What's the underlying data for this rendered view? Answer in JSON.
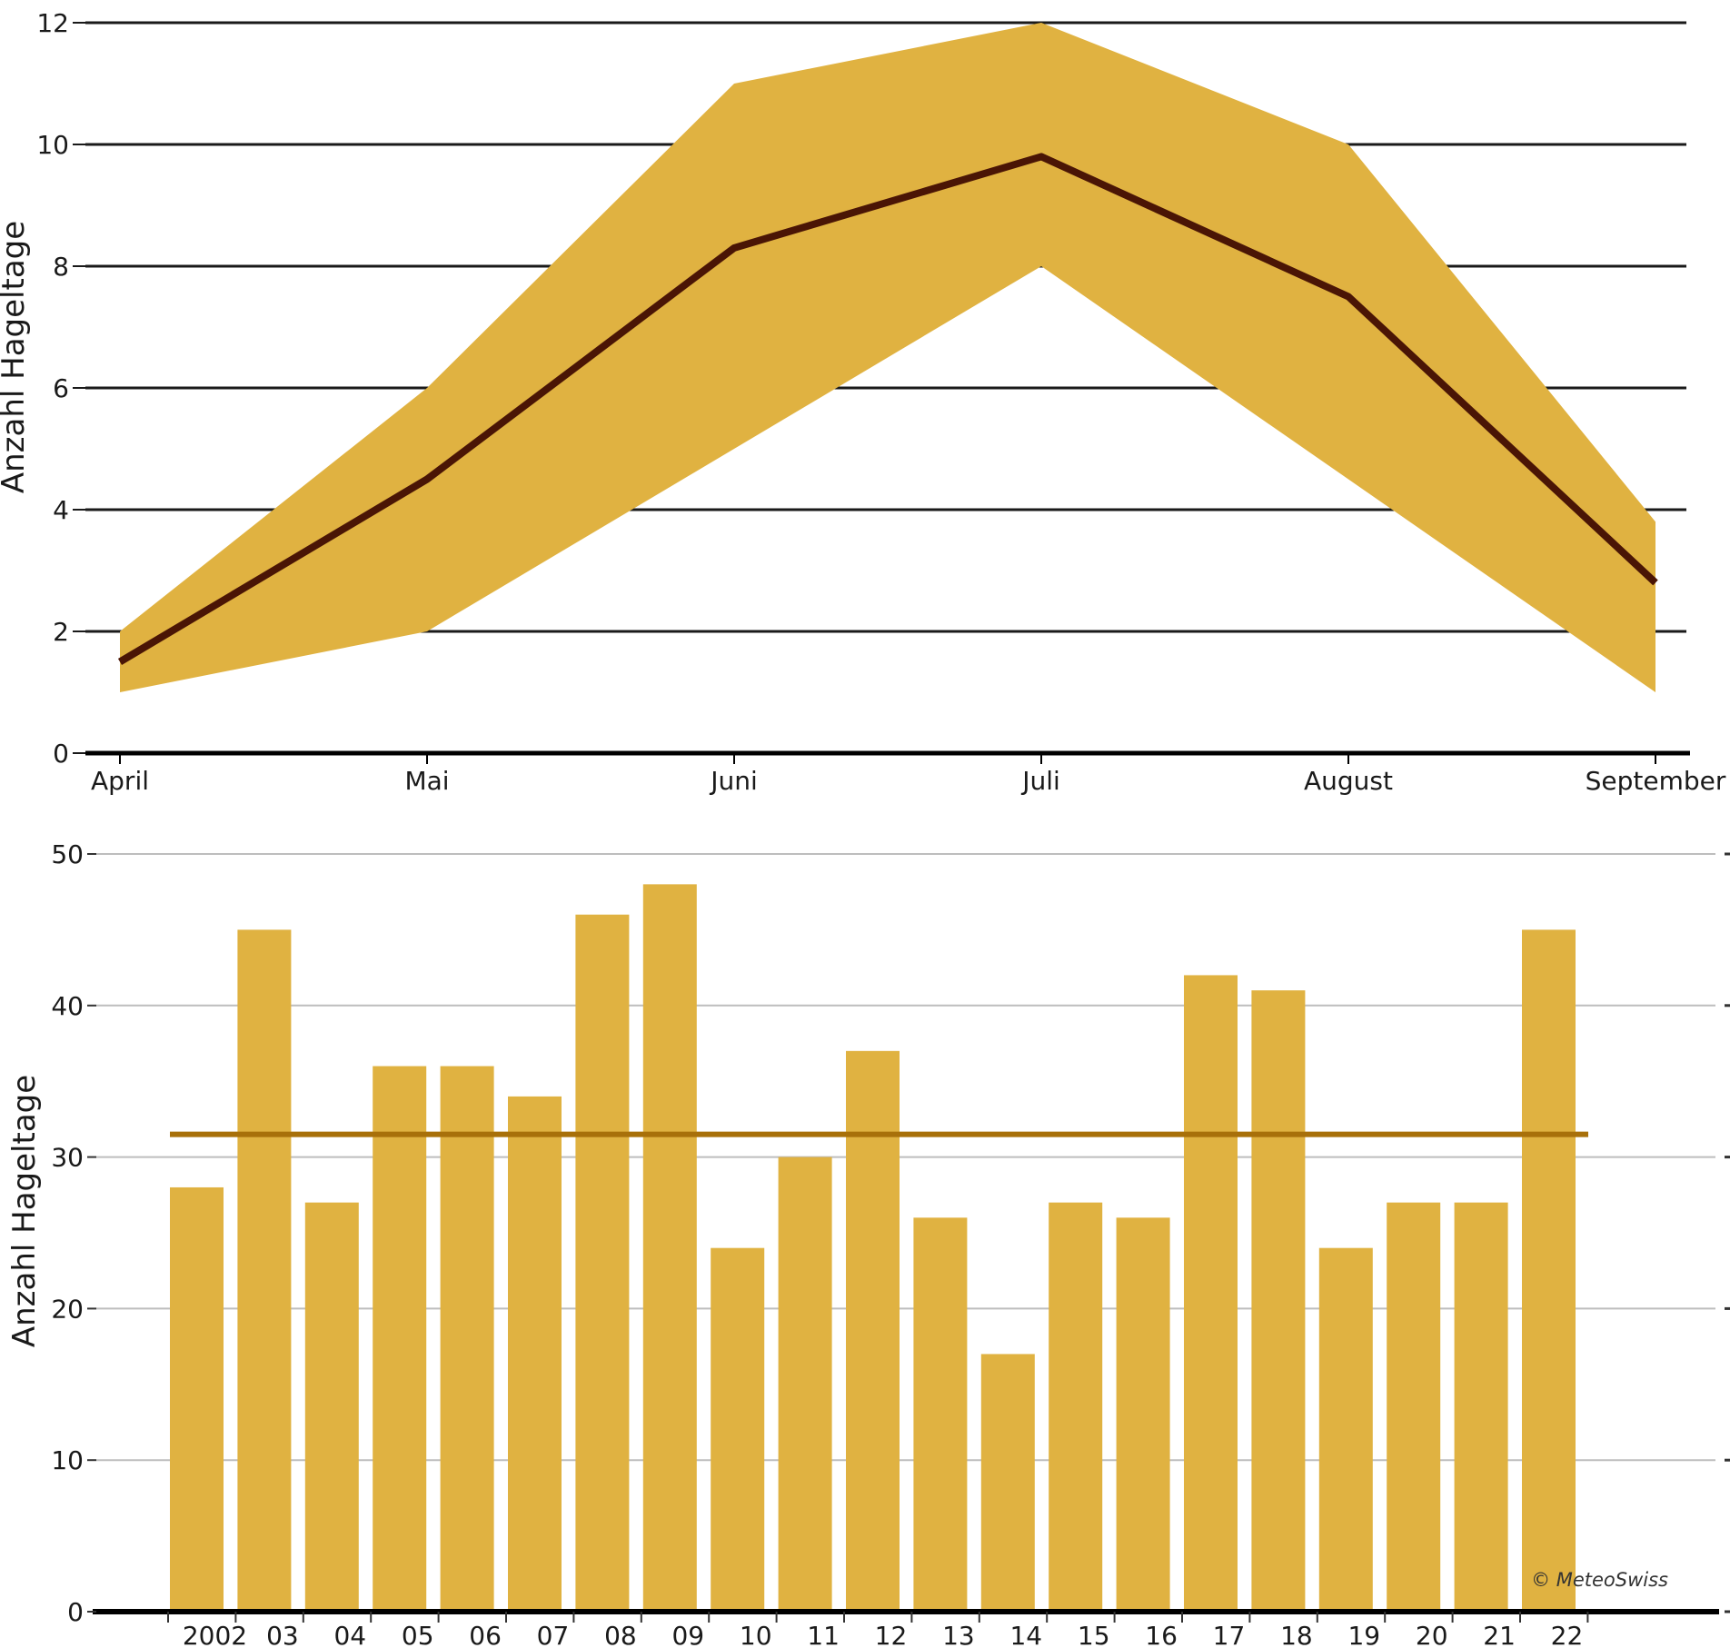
{
  "colors": {
    "band": "#e0b241",
    "mean_line_top": "#4a1505",
    "bars": "#e0b241",
    "average_line": "#a8700a",
    "grid_top": "#1a1a1a",
    "grid_bottom": "#bdbdbd",
    "axis": "#000000"
  },
  "chart_data": [
    {
      "type": "area",
      "title": "",
      "xlabel": "",
      "ylabel": "Anzahl Hageltage",
      "categories": [
        "April",
        "Mai",
        "Juni",
        "Juli",
        "August",
        "September"
      ],
      "ylim": [
        0,
        12
      ],
      "yticks": [
        "0",
        "2",
        "4",
        "6",
        "8",
        "10",
        "12"
      ],
      "grid": true,
      "series": [
        {
          "role": "band_upper",
          "values": [
            2,
            6,
            11,
            12,
            10,
            3.8
          ]
        },
        {
          "role": "band_lower",
          "values": [
            1,
            2,
            5,
            8,
            4.5,
            1
          ]
        },
        {
          "role": "line",
          "values": [
            1.5,
            4.5,
            8.3,
            9.8,
            7.5,
            2.8
          ]
        }
      ]
    },
    {
      "type": "bar",
      "title": "",
      "xlabel": "",
      "ylabel": "Anzahl Hageltage",
      "categories": [
        "2002",
        "03",
        "04",
        "05",
        "06",
        "07",
        "08",
        "09",
        "10",
        "11",
        "12",
        "13",
        "14",
        "15",
        "16",
        "17",
        "18",
        "19",
        "20",
        "21",
        "22"
      ],
      "values": [
        28,
        45,
        27,
        36,
        36,
        34,
        46,
        48,
        24,
        30,
        37,
        26,
        17,
        27,
        26,
        42,
        41,
        24,
        27,
        27,
        45
      ],
      "reference_line": 31.5,
      "ylim": [
        0,
        50
      ],
      "yticks": [
        "0",
        "10",
        "20",
        "30",
        "40",
        "50"
      ],
      "grid": true,
      "annotation": "© MeteoSwiss"
    }
  ]
}
